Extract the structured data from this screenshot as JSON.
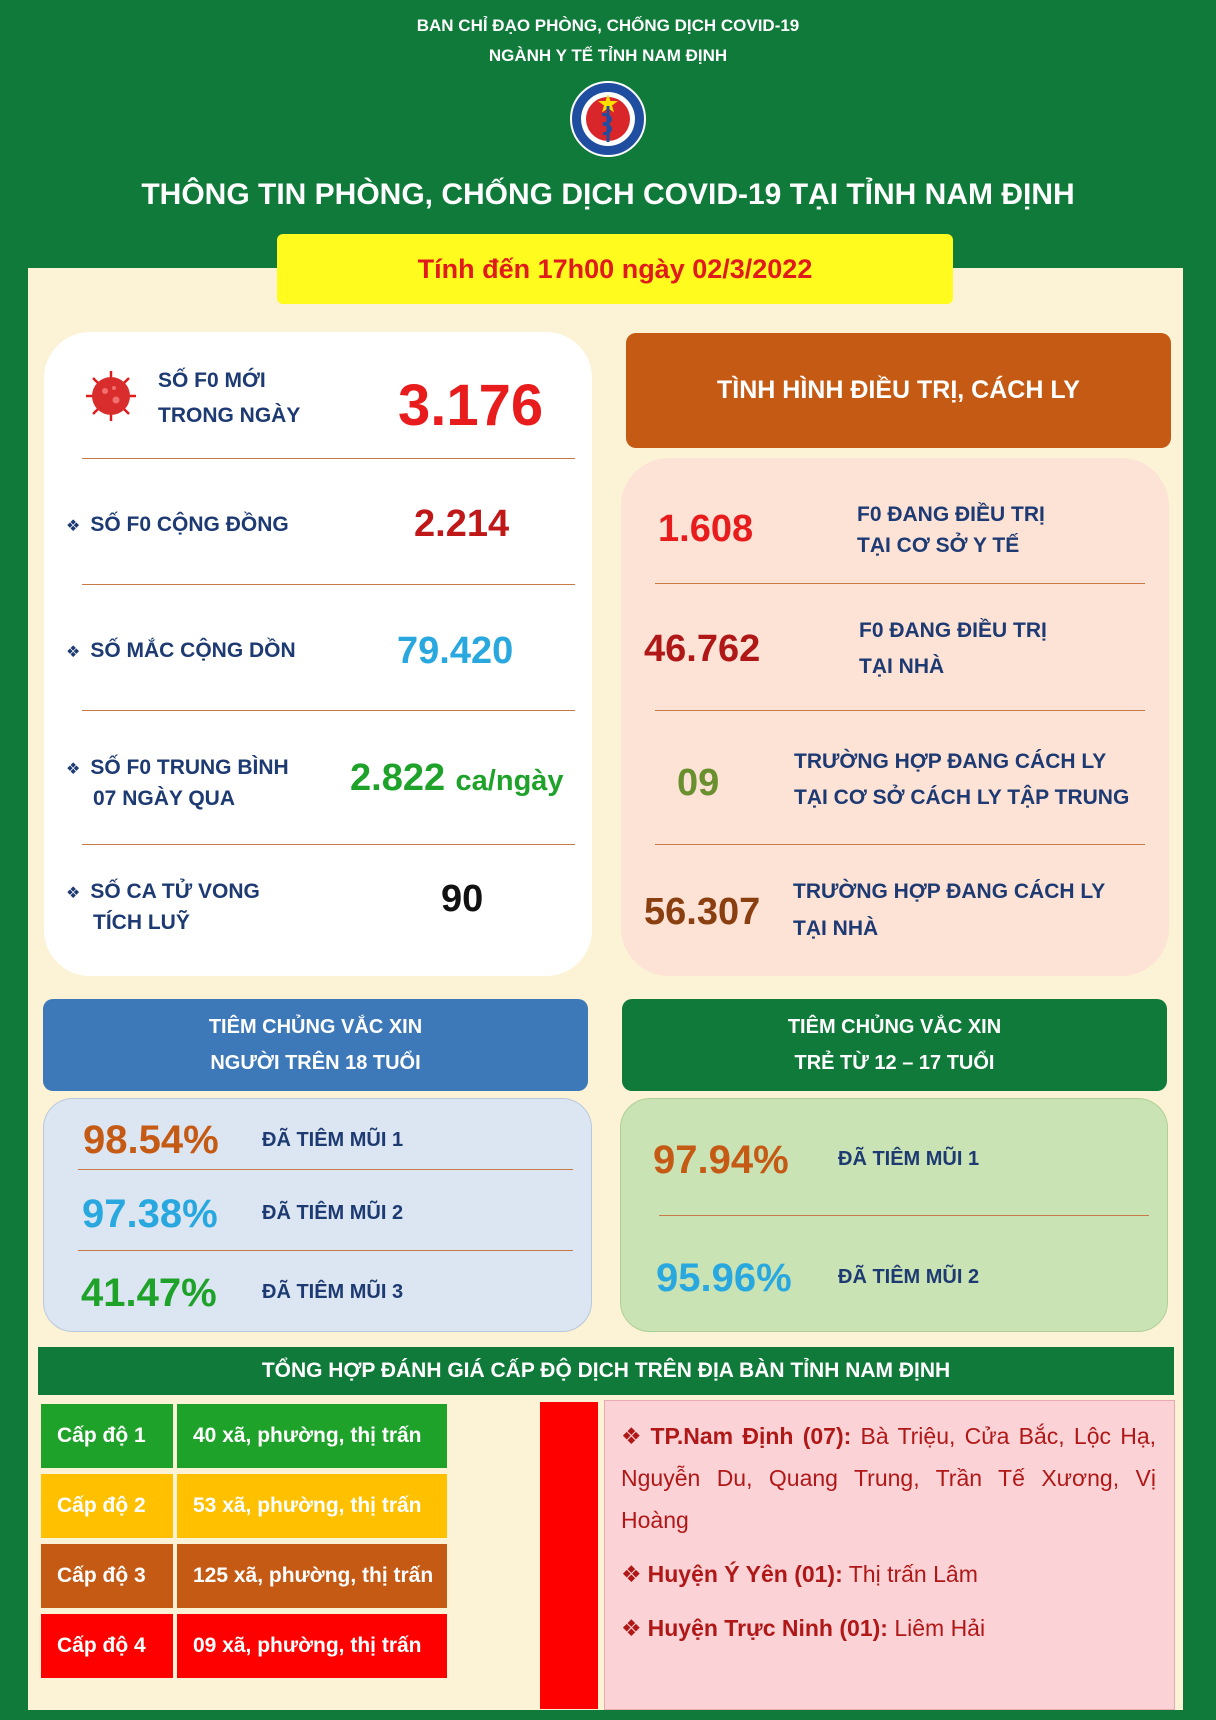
{
  "header": {
    "org_line1": "BAN CHỈ ĐẠO PHÒNG, CHỐNG DỊCH COVID-19",
    "org_line2": "NGÀNH Y TẾ TỈNH NAM ĐỊNH",
    "logo_text": "BỘ Y TẾ",
    "title": "THÔNG TIN PHÒNG, CHỐNG DỊCH COVID-19 TẠI TỈNH NAM ĐỊNH",
    "date": "Tính đến 17h00 ngày 02/3/2022"
  },
  "left_stats": {
    "new_label_1": "SỐ F0 MỚI",
    "new_label_2": "TRONG NGÀY",
    "new_value": "3.176",
    "community_label": "SỐ F0 CỘNG ĐỒNG",
    "community_value": "2.214",
    "cumulative_label": "SỐ MẮC CỘNG DỒN",
    "cumulative_value": "79.420",
    "avg_label_1": "SỐ F0 TRUNG BÌNH",
    "avg_label_2": "07 NGÀY QUA",
    "avg_value": "2.822",
    "avg_unit": "ca/ngày",
    "deaths_label_1": "SỐ CA TỬ VONG",
    "deaths_label_2": "TÍCH LUỸ",
    "deaths_value": "90"
  },
  "treatment": {
    "title": "TÌNH HÌNH ĐIỀU TRỊ, CÁCH LY",
    "rows": [
      {
        "value": "1.608",
        "line1": "F0 ĐANG ĐIỀU TRỊ",
        "line2": "TẠI CƠ SỞ Y TẾ"
      },
      {
        "value": "46.762",
        "line1": "F0 ĐANG ĐIỀU TRỊ",
        "line2": "TẠI NHÀ"
      },
      {
        "value": "09",
        "line1": "TRƯỜNG HỢP ĐANG CÁCH LY",
        "line2": "TẠI CƠ SỞ CÁCH LY TẬP TRUNG"
      },
      {
        "value": "56.307",
        "line1": "TRƯỜNG HỢP ĐANG CÁCH LY",
        "line2": "TẠI NHÀ"
      }
    ]
  },
  "vaccine_adult": {
    "title_1": "TIÊM CHỦNG VẮC XIN",
    "title_2": "NGƯỜI TRÊN 18 TUỔI",
    "rows": [
      {
        "pct": "98.54%",
        "label": "ĐÃ TIÊM MŨI 1"
      },
      {
        "pct": "97.38%",
        "label": "ĐÃ TIÊM MŨI 2"
      },
      {
        "pct": "41.47%",
        "label": "ĐÃ TIÊM MŨI 3"
      }
    ]
  },
  "vaccine_child": {
    "title_1": "TIÊM CHỦNG VẮC XIN",
    "title_2": "TRẺ TỪ 12 – 17 TUỔI",
    "rows": [
      {
        "pct": "97.94%",
        "label": "ĐÃ TIÊM MŨI 1"
      },
      {
        "pct": "95.96%",
        "label": "ĐÃ TIÊM MŨI 2"
      }
    ]
  },
  "summary": {
    "title": "TỔNG HỢP ĐÁNH GIÁ CẤP ĐỘ DỊCH TRÊN ĐỊA BÀN TỈNH NAM ĐỊNH",
    "levels": [
      {
        "level": "Cấp độ 1",
        "desc": "40 xã, phường, thị trấn",
        "color": "#1ea22a"
      },
      {
        "level": "Cấp độ 2",
        "desc": "53 xã, phường, thị trấn",
        "color": "#ffc000"
      },
      {
        "level": "Cấp độ 3",
        "desc": "125 xã, phường, thị trấn",
        "color": "#c55a14"
      },
      {
        "level": "Cấp độ 4",
        "desc": "09 xã, phường, thị trấn",
        "color": "#ff0000"
      }
    ],
    "areas": [
      {
        "name": "TP.Nam Định (07):",
        "list": "Bà Triệu, Cửa Bắc, Lộc Hạ, Nguyễn Du, Quang Trung, Trần Tế Xương, Vị Hoàng"
      },
      {
        "name": "Huyện Ý Yên (01):",
        "list": "Thị trấn Lâm"
      },
      {
        "name": "Huyện Trực Ninh (01):",
        "list": "Liêm Hải"
      }
    ]
  },
  "colors": {
    "green_bg": "#0f7a3a",
    "cream": "#fcf3d6",
    "red": "#e01b1b",
    "dark_red": "#b01818",
    "cyan": "#29a8e0",
    "green_text": "#1ea22a",
    "brown": "#c55a14"
  }
}
